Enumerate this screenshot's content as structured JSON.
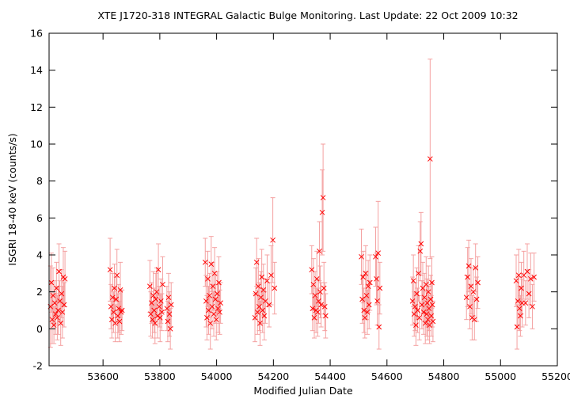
{
  "chart_data": {
    "type": "scatter",
    "title": "XTE J1720-318   INTEGRAL Galactic Bulge Monitoring.  Last Update: 22 Oct 2009 10:32",
    "xlabel": "Modified Julian Date",
    "ylabel": "ISGRI 18-40 keV (counts/s)",
    "xlim": [
      53410,
      55200
    ],
    "ylim": [
      -2,
      16
    ],
    "xticks": [
      53600,
      53800,
      54000,
      54200,
      54400,
      54600,
      54800,
      55000,
      55200
    ],
    "yticks": [
      -2,
      0,
      2,
      4,
      6,
      8,
      10,
      12,
      14,
      16
    ],
    "grid": false,
    "marker": "x",
    "color": "#ff0000",
    "errorbar_color": "#f4a0a0",
    "series": [
      {
        "points": [
          {
            "x": 53415,
            "y": 1.2,
            "err": 2.2
          },
          {
            "x": 53418,
            "y": 2.5,
            "err": 1.6
          },
          {
            "x": 53421,
            "y": 0.5,
            "err": 1.3
          },
          {
            "x": 53424,
            "y": 1.8,
            "err": 1.5
          },
          {
            "x": 53427,
            "y": 0.2,
            "err": 1.0
          },
          {
            "x": 53430,
            "y": 1.4,
            "err": 1.2
          },
          {
            "x": 53433,
            "y": 0.8,
            "err": 1.1
          },
          {
            "x": 53436,
            "y": 2.2,
            "err": 1.4
          },
          {
            "x": 53439,
            "y": 0.6,
            "err": 1.2
          },
          {
            "x": 53442,
            "y": 1.0,
            "err": 1.3
          },
          {
            "x": 53445,
            "y": 3.1,
            "err": 1.5
          },
          {
            "x": 53448,
            "y": 1.5,
            "err": 1.1
          },
          {
            "x": 53451,
            "y": 0.3,
            "err": 1.2
          },
          {
            "x": 53454,
            "y": 1.9,
            "err": 1.3
          },
          {
            "x": 53457,
            "y": 0.9,
            "err": 1.4
          },
          {
            "x": 53460,
            "y": 2.8,
            "err": 1.6
          },
          {
            "x": 53463,
            "y": 1.3,
            "err": 1.2
          },
          {
            "x": 53466,
            "y": 2.7,
            "err": 1.5
          },
          {
            "x": 53625,
            "y": 3.2,
            "err": 1.7
          },
          {
            "x": 53628,
            "y": 1.2,
            "err": 1.2
          },
          {
            "x": 53631,
            "y": 0.5,
            "err": 1.0
          },
          {
            "x": 53634,
            "y": 1.7,
            "err": 1.3
          },
          {
            "x": 53637,
            "y": 0.9,
            "err": 1.1
          },
          {
            "x": 53640,
            "y": 2.2,
            "err": 1.3
          },
          {
            "x": 53643,
            "y": 0.3,
            "err": 1.0
          },
          {
            "x": 53646,
            "y": 1.6,
            "err": 1.2
          },
          {
            "x": 53649,
            "y": 2.9,
            "err": 1.4
          },
          {
            "x": 53652,
            "y": 0.7,
            "err": 1.2
          },
          {
            "x": 53655,
            "y": 1.1,
            "err": 1.3
          },
          {
            "x": 53658,
            "y": 0.4,
            "err": 1.1
          },
          {
            "x": 53661,
            "y": 2.1,
            "err": 1.5
          },
          {
            "x": 53664,
            "y": 0.9,
            "err": 1.2
          },
          {
            "x": 53667,
            "y": 1.0,
            "err": 1.1
          },
          {
            "x": 53765,
            "y": 2.3,
            "err": 1.4
          },
          {
            "x": 53768,
            "y": 0.8,
            "err": 1.2
          },
          {
            "x": 53771,
            "y": 1.4,
            "err": 1.1
          },
          {
            "x": 53774,
            "y": 0.5,
            "err": 1.0
          },
          {
            "x": 53777,
            "y": 1.8,
            "err": 1.3
          },
          {
            "x": 53780,
            "y": 1.0,
            "err": 1.2
          },
          {
            "x": 53783,
            "y": 0.3,
            "err": 1.1
          },
          {
            "x": 53786,
            "y": 1.6,
            "err": 1.4
          },
          {
            "x": 53789,
            "y": 2.0,
            "err": 1.3
          },
          {
            "x": 53792,
            "y": 0.7,
            "err": 1.2
          },
          {
            "x": 53795,
            "y": 3.2,
            "err": 1.4
          },
          {
            "x": 53798,
            "y": 1.2,
            "err": 1.1
          },
          {
            "x": 53801,
            "y": 0.6,
            "err": 1.3
          },
          {
            "x": 53804,
            "y": 1.5,
            "err": 1.2
          },
          {
            "x": 53807,
            "y": 0.9,
            "err": 1.0
          },
          {
            "x": 53810,
            "y": 2.4,
            "err": 1.5
          },
          {
            "x": 53825,
            "y": 1.1,
            "err": 1.2
          },
          {
            "x": 53828,
            "y": 0.4,
            "err": 1.1
          },
          {
            "x": 53831,
            "y": 1.7,
            "err": 1.3
          },
          {
            "x": 53834,
            "y": 0.8,
            "err": 1.2
          },
          {
            "x": 53837,
            "y": 0.0,
            "err": 1.1
          },
          {
            "x": 53840,
            "y": 1.3,
            "err": 1.2
          },
          {
            "x": 53960,
            "y": 3.6,
            "err": 1.3
          },
          {
            "x": 53963,
            "y": 1.5,
            "err": 1.4
          },
          {
            "x": 53966,
            "y": 0.6,
            "err": 1.2
          },
          {
            "x": 53969,
            "y": 2.7,
            "err": 1.5
          },
          {
            "x": 53972,
            "y": 1.0,
            "err": 1.3
          },
          {
            "x": 53975,
            "y": 1.8,
            "err": 1.2
          },
          {
            "x": 53978,
            "y": 0.3,
            "err": 1.4
          },
          {
            "x": 53981,
            "y": 3.5,
            "err": 1.5
          },
          {
            "x": 53984,
            "y": 1.2,
            "err": 1.2
          },
          {
            "x": 53987,
            "y": 2.3,
            "err": 1.3
          },
          {
            "x": 53990,
            "y": 0.8,
            "err": 1.2
          },
          {
            "x": 53993,
            "y": 3.0,
            "err": 1.4
          },
          {
            "x": 53996,
            "y": 1.6,
            "err": 1.3
          },
          {
            "x": 53999,
            "y": 0.5,
            "err": 1.1
          },
          {
            "x": 54002,
            "y": 1.9,
            "err": 1.2
          },
          {
            "x": 54005,
            "y": 1.1,
            "err": 1.3
          },
          {
            "x": 54008,
            "y": 2.5,
            "err": 1.4
          },
          {
            "x": 54011,
            "y": 0.9,
            "err": 1.2
          },
          {
            "x": 54014,
            "y": 1.4,
            "err": 1.1
          },
          {
            "x": 54135,
            "y": 0.6,
            "err": 1.3
          },
          {
            "x": 54138,
            "y": 1.9,
            "err": 1.4
          },
          {
            "x": 54141,
            "y": 3.6,
            "err": 1.3
          },
          {
            "x": 54144,
            "y": 0.9,
            "err": 1.2
          },
          {
            "x": 54147,
            "y": 2.3,
            "err": 1.5
          },
          {
            "x": 54150,
            "y": 1.2,
            "err": 1.3
          },
          {
            "x": 54153,
            "y": 0.3,
            "err": 1.2
          },
          {
            "x": 54156,
            "y": 1.7,
            "err": 1.4
          },
          {
            "x": 54159,
            "y": 2.8,
            "err": 1.5
          },
          {
            "x": 54162,
            "y": 1.0,
            "err": 1.2
          },
          {
            "x": 54165,
            "y": 2.1,
            "err": 1.4
          },
          {
            "x": 54168,
            "y": 0.7,
            "err": 1.3
          },
          {
            "x": 54172,
            "y": 1.5,
            "err": 1.2
          },
          {
            "x": 54178,
            "y": 2.6,
            "err": 1.4
          },
          {
            "x": 54185,
            "y": 1.3,
            "err": 1.2
          },
          {
            "x": 54192,
            "y": 2.9,
            "err": 1.6
          },
          {
            "x": 54198,
            "y": 4.8,
            "err": 2.3
          },
          {
            "x": 54204,
            "y": 2.2,
            "err": 1.4
          },
          {
            "x": 54335,
            "y": 3.2,
            "err": 1.3
          },
          {
            "x": 54338,
            "y": 1.1,
            "err": 1.2
          },
          {
            "x": 54341,
            "y": 2.4,
            "err": 1.4
          },
          {
            "x": 54344,
            "y": 0.6,
            "err": 1.1
          },
          {
            "x": 54347,
            "y": 1.8,
            "err": 1.3
          },
          {
            "x": 54350,
            "y": 1.0,
            "err": 1.2
          },
          {
            "x": 54353,
            "y": 2.7,
            "err": 1.5
          },
          {
            "x": 54356,
            "y": 0.9,
            "err": 1.3
          },
          {
            "x": 54359,
            "y": 1.5,
            "err": 1.2
          },
          {
            "x": 54362,
            "y": 4.2,
            "err": 1.6
          },
          {
            "x": 54365,
            "y": 2.0,
            "err": 1.4
          },
          {
            "x": 54368,
            "y": 1.3,
            "err": 1.2
          },
          {
            "x": 54372,
            "y": 6.3,
            "err": 2.3
          },
          {
            "x": 54375,
            "y": 7.1,
            "err": 2.9
          },
          {
            "x": 54378,
            "y": 2.2,
            "err": 1.4
          },
          {
            "x": 54381,
            "y": 1.2,
            "err": 1.3
          },
          {
            "x": 54384,
            "y": 0.7,
            "err": 1.2
          },
          {
            "x": 54510,
            "y": 3.9,
            "err": 1.5
          },
          {
            "x": 54513,
            "y": 1.6,
            "err": 1.3
          },
          {
            "x": 54516,
            "y": 2.8,
            "err": 1.4
          },
          {
            "x": 54519,
            "y": 1.0,
            "err": 1.2
          },
          {
            "x": 54522,
            "y": 0.6,
            "err": 1.1
          },
          {
            "x": 54525,
            "y": 3.0,
            "err": 1.5
          },
          {
            "x": 54528,
            "y": 1.8,
            "err": 1.3
          },
          {
            "x": 54531,
            "y": 0.9,
            "err": 1.2
          },
          {
            "x": 54534,
            "y": 2.3,
            "err": 1.4
          },
          {
            "x": 54537,
            "y": 1.3,
            "err": 1.3
          },
          {
            "x": 54540,
            "y": 2.5,
            "err": 1.5
          },
          {
            "x": 54560,
            "y": 3.9,
            "err": 1.6
          },
          {
            "x": 54563,
            "y": 2.7,
            "err": 1.4
          },
          {
            "x": 54566,
            "y": 1.5,
            "err": 1.3
          },
          {
            "x": 54569,
            "y": 4.1,
            "err": 2.8
          },
          {
            "x": 54572,
            "y": 0.1,
            "err": 1.2
          },
          {
            "x": 54575,
            "y": 2.2,
            "err": 1.4
          },
          {
            "x": 54690,
            "y": 1.5,
            "err": 1.3
          },
          {
            "x": 54693,
            "y": 2.6,
            "err": 1.4
          },
          {
            "x": 54696,
            "y": 0.8,
            "err": 1.2
          },
          {
            "x": 54699,
            "y": 1.2,
            "err": 1.3
          },
          {
            "x": 54702,
            "y": 0.2,
            "err": 1.1
          },
          {
            "x": 54705,
            "y": 1.9,
            "err": 1.4
          },
          {
            "x": 54708,
            "y": 1.0,
            "err": 1.2
          },
          {
            "x": 54711,
            "y": 3.0,
            "err": 1.5
          },
          {
            "x": 54714,
            "y": 0.6,
            "err": 1.2
          },
          {
            "x": 54717,
            "y": 4.2,
            "err": 1.6
          },
          {
            "x": 54720,
            "y": 4.6,
            "err": 1.7
          },
          {
            "x": 54723,
            "y": 1.3,
            "err": 1.3
          },
          {
            "x": 54726,
            "y": 2.2,
            "err": 1.4
          },
          {
            "x": 54729,
            "y": 0.9,
            "err": 1.2
          },
          {
            "x": 54732,
            "y": 1.7,
            "err": 1.3
          },
          {
            "x": 54735,
            "y": 0.3,
            "err": 1.1
          },
          {
            "x": 54738,
            "y": 2.4,
            "err": 1.5
          },
          {
            "x": 54740,
            "y": 0.8,
            "err": 1.2
          },
          {
            "x": 54742,
            "y": 1.4,
            "err": 1.3
          },
          {
            "x": 54744,
            "y": 0.5,
            "err": 1.1
          },
          {
            "x": 54746,
            "y": 2.0,
            "err": 1.4
          },
          {
            "x": 54748,
            "y": 1.1,
            "err": 1.2
          },
          {
            "x": 54750,
            "y": 0.2,
            "err": 1.0
          },
          {
            "x": 54752,
            "y": 9.2,
            "err": 5.4
          },
          {
            "x": 54754,
            "y": 1.6,
            "err": 1.3
          },
          {
            "x": 54756,
            "y": 0.7,
            "err": 1.1
          },
          {
            "x": 54758,
            "y": 2.5,
            "err": 1.4
          },
          {
            "x": 54760,
            "y": 1.3,
            "err": 1.2
          },
          {
            "x": 54762,
            "y": 0.4,
            "err": 1.1
          },
          {
            "x": 54880,
            "y": 1.7,
            "err": 1.2
          },
          {
            "x": 54884,
            "y": 2.8,
            "err": 1.6
          },
          {
            "x": 54888,
            "y": 3.4,
            "err": 1.4
          },
          {
            "x": 54892,
            "y": 1.2,
            "err": 1.2
          },
          {
            "x": 54896,
            "y": 2.3,
            "err": 1.5
          },
          {
            "x": 54900,
            "y": 0.6,
            "err": 1.2
          },
          {
            "x": 54904,
            "y": 2.0,
            "err": 1.3
          },
          {
            "x": 54908,
            "y": 0.5,
            "err": 1.1
          },
          {
            "x": 54912,
            "y": 3.3,
            "err": 1.3
          },
          {
            "x": 54916,
            "y": 1.6,
            "err": 1.2
          },
          {
            "x": 54920,
            "y": 2.5,
            "err": 1.4
          },
          {
            "x": 55055,
            "y": 2.6,
            "err": 1.4
          },
          {
            "x": 55058,
            "y": 0.1,
            "err": 1.2
          },
          {
            "x": 55061,
            "y": 1.5,
            "err": 1.3
          },
          {
            "x": 55064,
            "y": 2.9,
            "err": 1.4
          },
          {
            "x": 55067,
            "y": 1.1,
            "err": 1.2
          },
          {
            "x": 55070,
            "y": 0.7,
            "err": 1.1
          },
          {
            "x": 55073,
            "y": 2.2,
            "err": 1.4
          },
          {
            "x": 55076,
            "y": 1.4,
            "err": 1.3
          },
          {
            "x": 55082,
            "y": 2.9,
            "err": 1.3
          },
          {
            "x": 55088,
            "y": 1.4,
            "err": 1.2
          },
          {
            "x": 55094,
            "y": 3.1,
            "err": 1.5
          },
          {
            "x": 55100,
            "y": 1.9,
            "err": 1.3
          },
          {
            "x": 55106,
            "y": 2.7,
            "err": 1.4
          },
          {
            "x": 55112,
            "y": 1.2,
            "err": 1.2
          },
          {
            "x": 55118,
            "y": 2.8,
            "err": 1.3
          }
        ]
      }
    ]
  }
}
